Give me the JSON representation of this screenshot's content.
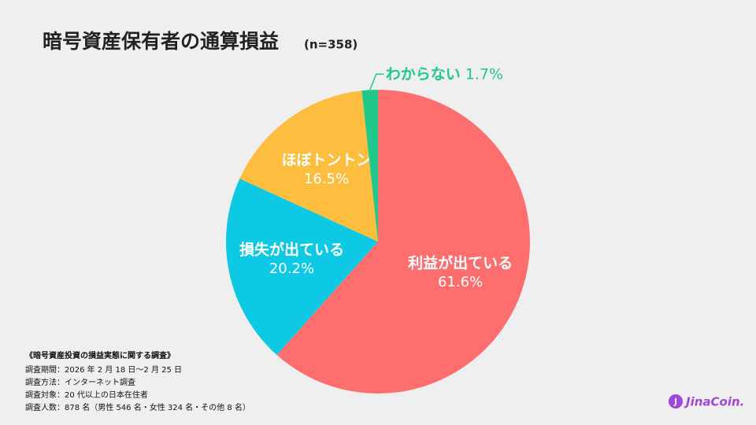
{
  "chart_data": {
    "type": "pie",
    "title": "暗号資産保有者の通算損益",
    "subtitle": "(n=358)",
    "categories": [
      "利益が出ている",
      "損失が出ている",
      "ほぼトントン",
      "わからない"
    ],
    "values": [
      61.6,
      20.2,
      16.5,
      1.7
    ],
    "value_labels": [
      "61.6%",
      "20.2%",
      "16.5%",
      "1.7%"
    ],
    "colors": [
      "#ff6e6e",
      "#0dc9e3",
      "#fdbd3e",
      "#20c98b"
    ]
  },
  "notes": {
    "heading": "《暗号資産投資の損益実態に関する調査》",
    "lines": [
      "調査期間：2026 年 2 月 18 日〜2 月 25 日",
      "調査方法：インターネット調査",
      "調査対象：20 代以上の日本在住者",
      "調査人数：878 名（男性 546 名・女性 324 名・その他 8 名）"
    ]
  },
  "brand": {
    "name": "JinaCoin."
  }
}
